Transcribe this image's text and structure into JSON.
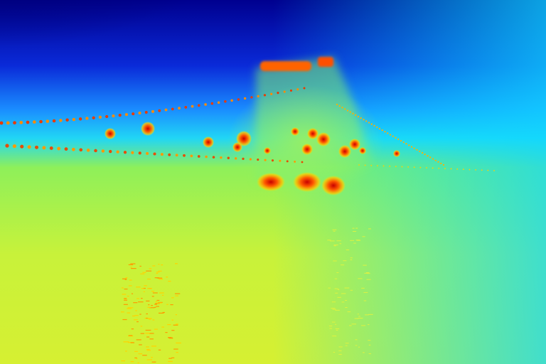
{
  "image": {
    "kind": "depth-map",
    "colormap": "jet",
    "subject": "suspension-bridge-at-night",
    "palette": {
      "far": "#00008f",
      "mid": "#1e90ff",
      "near_cyan": "#00e5ff",
      "near": "#a8f04a",
      "closest": "#f2f52c",
      "hot": "#ff7a00",
      "hotspot": "#d8140a"
    }
  }
}
